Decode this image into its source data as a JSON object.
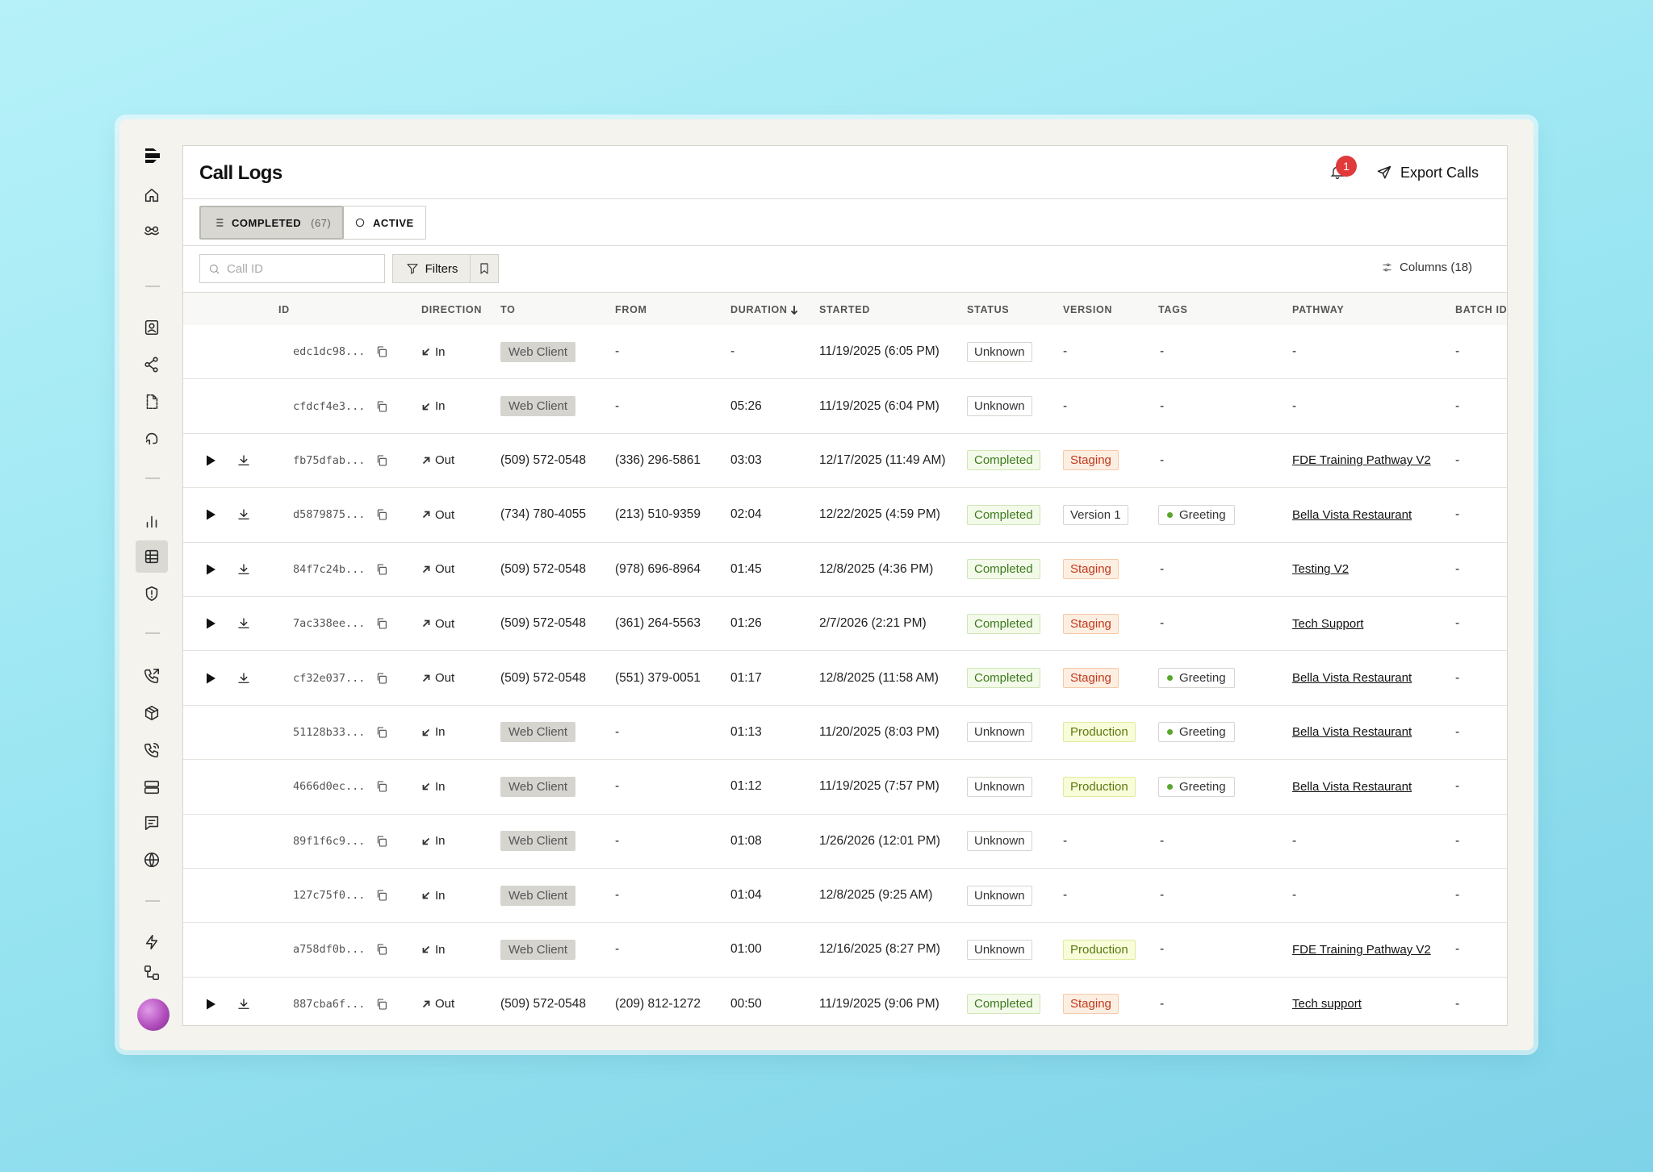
{
  "page": {
    "title": "Call Logs",
    "notification_count": "1",
    "export_label": "Export Calls"
  },
  "sidebar": {
    "icons": [
      "home-icon",
      "agents-icon",
      "contacts-icon",
      "share-icon",
      "document-icon",
      "voice-icon",
      "analytics-icon",
      "call-logs-icon",
      "security-icon",
      "phone-forward-icon",
      "package-icon",
      "phone-icon",
      "server-icon",
      "message-icon",
      "globe-icon",
      "lightning-icon",
      "workflow-icon"
    ],
    "active": "call-logs-icon"
  },
  "tabs": [
    {
      "label": "COMPLETED",
      "count": "(67)",
      "active": true
    },
    {
      "label": "ACTIVE",
      "active": false
    }
  ],
  "toolbar": {
    "search_placeholder": "Call ID",
    "filters_label": "Filters",
    "columns_label": "Columns (18)"
  },
  "table": {
    "columns": [
      "ID",
      "DIRECTION",
      "TO",
      "FROM",
      "DURATION",
      "STARTED",
      "STATUS",
      "VERSION",
      "TAGS",
      "PATHWAY",
      "BATCH ID"
    ],
    "rows": [
      {
        "playable": false,
        "id": "edc1dc98...",
        "direction": "In",
        "to": "Web Client",
        "to_type": "client",
        "from": "-",
        "duration": "-",
        "started": "11/19/2025 (6:05 PM)",
        "status": "Unknown",
        "version": "-",
        "tag": "-",
        "pathway": "-",
        "batch": "-"
      },
      {
        "playable": false,
        "id": "cfdcf4e3...",
        "direction": "In",
        "to": "Web Client",
        "to_type": "client",
        "from": "-",
        "duration": "05:26",
        "started": "11/19/2025 (6:04 PM)",
        "status": "Unknown",
        "version": "-",
        "tag": "-",
        "pathway": "-",
        "batch": "-"
      },
      {
        "playable": true,
        "id": "fb75dfab...",
        "direction": "Out",
        "to": "(509) 572-0548",
        "to_type": "phone",
        "from": "(336) 296-5861",
        "duration": "03:03",
        "started": "12/17/2025 (11:49 AM)",
        "status": "Completed",
        "version": "Staging",
        "tag": "-",
        "pathway": "FDE Training Pathway V2",
        "batch": "-"
      },
      {
        "playable": true,
        "id": "d5879875...",
        "direction": "Out",
        "to": "(734) 780-4055",
        "to_type": "phone",
        "from": "(213) 510-9359",
        "duration": "02:04",
        "started": "12/22/2025 (4:59 PM)",
        "status": "Completed",
        "version": "Version 1",
        "tag": "Greeting",
        "pathway": "Bella Vista Restaurant",
        "batch": "-"
      },
      {
        "playable": true,
        "id": "84f7c24b...",
        "direction": "Out",
        "to": "(509) 572-0548",
        "to_type": "phone",
        "from": "(978) 696-8964",
        "duration": "01:45",
        "started": "12/8/2025 (4:36 PM)",
        "status": "Completed",
        "version": "Staging",
        "tag": "-",
        "pathway": "Testing V2",
        "batch": "-"
      },
      {
        "playable": true,
        "id": "7ac338ee...",
        "direction": "Out",
        "to": "(509) 572-0548",
        "to_type": "phone",
        "from": "(361) 264-5563",
        "duration": "01:26",
        "started": "2/7/2026 (2:21 PM)",
        "status": "Completed",
        "version": "Staging",
        "tag": "-",
        "pathway": "Tech Support",
        "batch": "-"
      },
      {
        "playable": true,
        "id": "cf32e037...",
        "direction": "Out",
        "to": "(509) 572-0548",
        "to_type": "phone",
        "from": "(551) 379-0051",
        "duration": "01:17",
        "started": "12/8/2025 (11:58 AM)",
        "status": "Completed",
        "version": "Staging",
        "tag": "Greeting",
        "pathway": "Bella Vista Restaurant",
        "batch": "-"
      },
      {
        "playable": false,
        "id": "51128b33...",
        "direction": "In",
        "to": "Web Client",
        "to_type": "client",
        "from": "-",
        "duration": "01:13",
        "started": "11/20/2025 (8:03 PM)",
        "status": "Unknown",
        "version": "Production",
        "tag": "Greeting",
        "pathway": "Bella Vista Restaurant",
        "batch": "-"
      },
      {
        "playable": false,
        "id": "4666d0ec...",
        "direction": "In",
        "to": "Web Client",
        "to_type": "client",
        "from": "-",
        "duration": "01:12",
        "started": "11/19/2025 (7:57 PM)",
        "status": "Unknown",
        "version": "Production",
        "tag": "Greeting",
        "pathway": "Bella Vista Restaurant",
        "batch": "-"
      },
      {
        "playable": false,
        "id": "89f1f6c9...",
        "direction": "In",
        "to": "Web Client",
        "to_type": "client",
        "from": "-",
        "duration": "01:08",
        "started": "1/26/2026 (12:01 PM)",
        "status": "Unknown",
        "version": "-",
        "tag": "-",
        "pathway": "-",
        "batch": "-"
      },
      {
        "playable": false,
        "id": "127c75f0...",
        "direction": "In",
        "to": "Web Client",
        "to_type": "client",
        "from": "-",
        "duration": "01:04",
        "started": "12/8/2025 (9:25 AM)",
        "status": "Unknown",
        "version": "-",
        "tag": "-",
        "pathway": "-",
        "batch": "-"
      },
      {
        "playable": false,
        "id": "a758df0b...",
        "direction": "In",
        "to": "Web Client",
        "to_type": "client",
        "from": "-",
        "duration": "01:00",
        "started": "12/16/2025 (8:27 PM)",
        "status": "Unknown",
        "version": "Production",
        "tag": "-",
        "pathway": "FDE Training Pathway V2",
        "batch": "-"
      },
      {
        "playable": true,
        "id": "887cba6f...",
        "direction": "Out",
        "to": "(509) 572-0548",
        "to_type": "phone",
        "from": "(209) 812-1272",
        "duration": "00:50",
        "started": "11/19/2025 (9:06 PM)",
        "status": "Completed",
        "version": "Staging",
        "tag": "-",
        "pathway": "Tech support",
        "batch": "-"
      }
    ]
  }
}
